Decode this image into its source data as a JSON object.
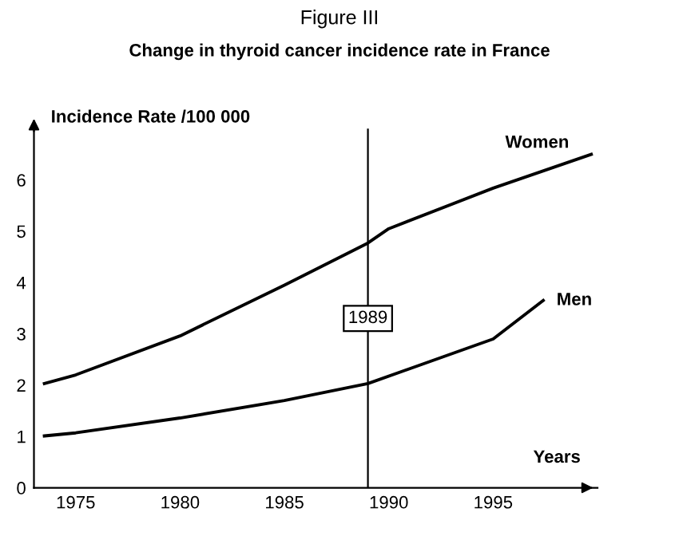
{
  "chart_data": {
    "type": "line",
    "title": "Figure III",
    "subtitle": "Change in thyroid cancer incidence rate in France",
    "xlabel": "Years",
    "ylabel": "Incidence Rate /100 000",
    "xlim": [
      1973,
      2000
    ],
    "xticks": [
      1975,
      1980,
      1985,
      1990,
      1995
    ],
    "ylim": [
      0,
      7
    ],
    "yticks": [
      0,
      1,
      2,
      3,
      4,
      5,
      6
    ],
    "grid": false,
    "legend": false,
    "marker": "none",
    "line_style": "solid",
    "series": [
      {
        "name": "Women",
        "color": "#000000",
        "x": [
          1973.5,
          1975,
          1980,
          1985,
          1989,
          1990,
          1995,
          1999.7
        ],
        "values": [
          2.03,
          2.2,
          2.96,
          3.95,
          4.77,
          5.05,
          5.84,
          6.5
        ]
      },
      {
        "name": "Men",
        "color": "#000000",
        "x": [
          1973.5,
          1975,
          1980,
          1985,
          1989,
          1995,
          1997.4
        ],
        "values": [
          1.01,
          1.07,
          1.36,
          1.7,
          2.03,
          2.9,
          3.65
        ]
      }
    ],
    "ref_lines": [
      {
        "axis": "x",
        "value": 1989,
        "label": "1989",
        "color": "#000000"
      }
    ]
  }
}
